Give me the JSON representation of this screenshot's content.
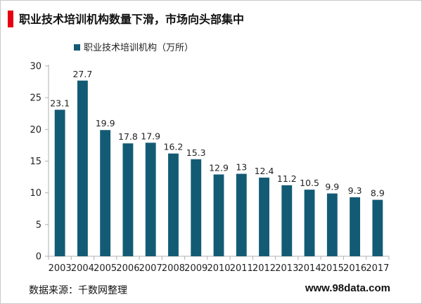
{
  "header": {
    "title": "职业技术培训机构数量下滑，市场向头部集中"
  },
  "footer": {
    "source": "数据来源：千数网整理",
    "website": "www.98data.com"
  },
  "colors": {
    "bar": "#135b74",
    "accent": "#e60012",
    "axis": "#b0b0b0",
    "text": "#222222"
  },
  "chart_data": {
    "type": "bar",
    "categories": [
      "2003",
      "2004",
      "2005",
      "2006",
      "2007",
      "2008",
      "2009",
      "2010",
      "2011",
      "2012",
      "2013",
      "2014",
      "2015",
      "2016",
      "2017"
    ],
    "series": [
      {
        "name": "职业技术培训机构（万所）",
        "values": [
          23.1,
          27.7,
          19.9,
          17.8,
          17.9,
          16.2,
          15.3,
          12.9,
          13,
          12.4,
          11.2,
          10.5,
          9.9,
          9.3,
          8.9
        ],
        "labels": [
          "23.1",
          "27.7",
          "19.9",
          "17.8",
          "17.9",
          "16.2",
          "15.3",
          "12.9",
          "13",
          "12.4",
          "11.2",
          "10.5",
          "9.9",
          "9.3",
          "8.9"
        ]
      }
    ],
    "yticks": [
      "0",
      "5",
      "10",
      "15",
      "20",
      "25",
      "30"
    ],
    "ylim": [
      0,
      30
    ],
    "xlabel": "",
    "ylabel": "",
    "grid": false,
    "legend": "top-left"
  }
}
